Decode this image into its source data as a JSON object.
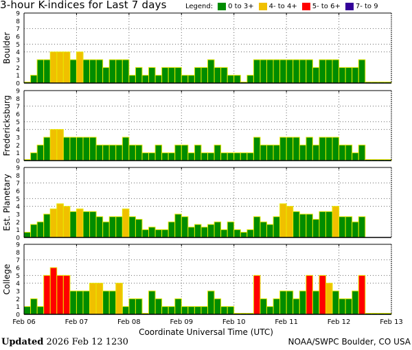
{
  "title": "3-hour K-indices for Last 7 days",
  "legend": {
    "label": "Legend:",
    "items": [
      {
        "label": "0 to 3+",
        "color": "#008c00"
      },
      {
        "label": "4- to 4+",
        "color": "#f0c000"
      },
      {
        "label": "5- to 6+",
        "color": "#ff0000"
      },
      {
        "label": "7- to 9",
        "color": "#330099"
      }
    ]
  },
  "x_axis": {
    "title": "Coordinate Universal Time (UTC)",
    "ticks": [
      "Feb 06",
      "Feb 07",
      "Feb 08",
      "Feb 09",
      "Feb 10",
      "Feb 11",
      "Feb 12",
      "Feb 13"
    ]
  },
  "y_ticks": [
    "0",
    "1",
    "2",
    "3",
    "4",
    "5",
    "6",
    "7",
    "8",
    "9"
  ],
  "footer": {
    "updated_label": "Updated",
    "updated_value": "2026 Feb 12 1230",
    "credit": "NOAA/SWPC Boulder, CO USA"
  },
  "chart_data": [
    {
      "type": "bar",
      "title": "Boulder",
      "ylim": [
        0,
        9
      ],
      "bars_per_day": 8,
      "values": [
        0,
        1,
        3,
        3,
        4,
        4,
        4,
        3,
        4,
        3,
        3,
        3,
        2,
        3,
        3,
        3,
        1,
        2,
        1,
        2,
        1,
        2,
        2,
        2,
        1,
        1,
        2,
        2,
        3,
        2,
        2,
        1,
        1,
        0,
        1,
        3,
        3,
        3,
        3,
        3,
        3,
        3,
        3,
        3,
        2,
        3,
        3,
        3,
        2,
        2,
        2,
        3,
        0,
        0,
        0,
        0
      ]
    },
    {
      "type": "bar",
      "title": "Fredericksburg",
      "ylim": [
        0,
        9
      ],
      "bars_per_day": 8,
      "values": [
        0,
        1,
        2,
        3,
        4,
        4,
        3,
        3,
        3,
        3,
        3,
        2,
        2,
        2,
        2,
        3,
        2,
        2,
        1,
        1,
        2,
        1,
        1,
        2,
        2,
        1,
        2,
        1,
        1,
        2,
        1,
        1,
        1,
        1,
        1,
        3,
        2,
        2,
        2,
        3,
        3,
        3,
        2,
        3,
        2,
        3,
        3,
        3,
        2,
        2,
        1,
        2,
        0,
        0,
        0,
        0
      ]
    },
    {
      "type": "bar",
      "title": "Est. Planetary",
      "ylim": [
        0,
        9
      ],
      "bars_per_day": 8,
      "values": [
        0.67,
        1.67,
        2,
        3,
        3.67,
        4.33,
        4,
        3.33,
        3.67,
        3.33,
        3.33,
        2.67,
        2,
        2.67,
        2.67,
        3.67,
        2.67,
        2.33,
        1,
        1.33,
        1,
        1,
        2,
        3,
        2.67,
        1.33,
        1.67,
        1.33,
        1.67,
        2,
        1,
        2,
        1,
        0.67,
        1,
        2.67,
        2,
        1.67,
        2.67,
        4.33,
        4,
        3.33,
        3,
        3,
        2.33,
        3.33,
        3.33,
        4,
        2.67,
        2.67,
        2,
        2.67,
        null,
        null,
        null,
        null
      ]
    },
    {
      "type": "bar",
      "title": "College",
      "ylim": [
        0,
        9
      ],
      "bars_per_day": 8,
      "values": [
        1,
        2,
        1,
        5,
        6,
        5,
        5,
        3,
        3,
        3,
        4,
        4,
        3,
        3,
        4,
        1,
        2,
        2,
        0,
        3,
        2,
        1,
        1,
        2,
        1,
        1,
        1,
        1,
        3,
        2,
        1,
        1,
        0,
        0,
        0,
        5,
        2,
        1,
        2,
        3,
        3,
        2,
        3,
        5,
        3,
        5,
        4,
        3,
        2,
        2,
        3,
        5,
        0,
        0,
        0,
        0
      ]
    }
  ]
}
